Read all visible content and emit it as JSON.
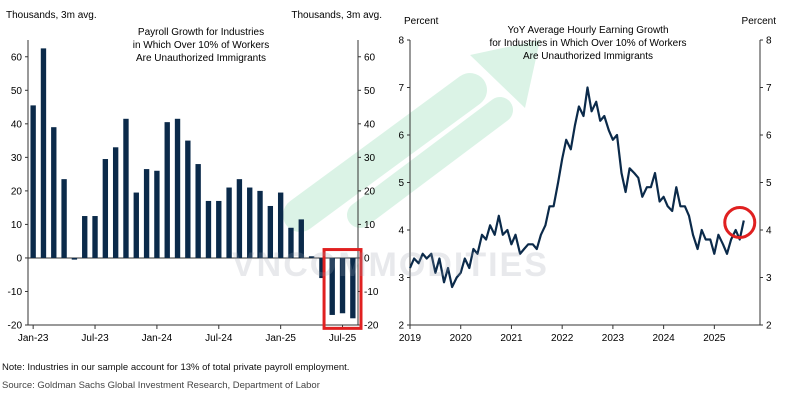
{
  "watermark": "VNCOMMODITIES",
  "note": "Note: Industries in our sample account for 13% of total private payroll employment.",
  "source": "Source: Goldman Sachs Global Investment Research, Department of Labor",
  "colors": {
    "bar": "#0b2a4a",
    "line": "#0b2a4a",
    "highlight": "#e02020",
    "watermark_arrow": "#7fd6a8"
  },
  "chart_data": [
    {
      "type": "bar",
      "title": "Payroll Growth for Industries in Which Over 10% of Workers Are Unauthorized Immigrants",
      "title_lines": [
        "Payroll Growth for Industries",
        "in Which Over 10% of Workers",
        "Are Unauthorized Immigrants"
      ],
      "left_unit_label": "Thousands, 3m avg.",
      "right_unit_label": "Thousands, 3m avg.",
      "ylim": [
        -20,
        65
      ],
      "y_ticks": [
        -20,
        -10,
        0,
        10,
        20,
        30,
        40,
        50,
        60
      ],
      "x_tick_labels": [
        "Jan-23",
        "Jul-23",
        "Jan-24",
        "Jul-24",
        "Jan-25",
        "Jul-25"
      ],
      "x_tick_index": [
        0,
        6,
        12,
        18,
        24,
        30
      ],
      "categories": [
        "Jan-23",
        "Feb-23",
        "Mar-23",
        "Apr-23",
        "May-23",
        "Jun-23",
        "Jul-23",
        "Aug-23",
        "Sep-23",
        "Oct-23",
        "Nov-23",
        "Dec-23",
        "Jan-24",
        "Feb-24",
        "Mar-24",
        "Apr-24",
        "May-24",
        "Jun-24",
        "Jul-24",
        "Aug-24",
        "Sep-24",
        "Oct-24",
        "Nov-24",
        "Dec-24",
        "Jan-25",
        "Feb-25",
        "Mar-25",
        "Apr-25",
        "May-25",
        "Jun-25",
        "Jul-25",
        "Aug-25"
      ],
      "values": [
        45.5,
        62.5,
        39,
        23.5,
        -0.5,
        12.5,
        12.5,
        29.5,
        33,
        41.5,
        19.5,
        26.5,
        26,
        40.5,
        41.5,
        35,
        28,
        17,
        17,
        21,
        23.5,
        21,
        20,
        15.5,
        19.5,
        9,
        11.5,
        0.5,
        -6,
        -17,
        -16.5,
        -18
      ],
      "highlight_range": [
        "Jun-25",
        "Aug-25"
      ]
    },
    {
      "type": "line",
      "title": "YoY Average Hourly Earning Growth for Industries in Which Over 10% of Workers Are Unauthorized Immigrants",
      "title_lines": [
        "YoY Average Hourly Earning Growth",
        "for Industries in Which Over 10% of Workers",
        "Are Unauthorized Immigrants"
      ],
      "left_unit_label": "Percent",
      "right_unit_label": "Percent",
      "ylim": [
        2,
        8
      ],
      "y_ticks": [
        2,
        3,
        4,
        5,
        6,
        7,
        8
      ],
      "x_tick_labels": [
        "2019",
        "2020",
        "2021",
        "2022",
        "2023",
        "2024",
        "2025"
      ],
      "xlim": [
        2019,
        2025.9
      ],
      "x": [
        2019.0,
        2019.08,
        2019.17,
        2019.25,
        2019.33,
        2019.42,
        2019.5,
        2019.58,
        2019.67,
        2019.75,
        2019.83,
        2019.92,
        2020.0,
        2020.08,
        2020.17,
        2020.25,
        2020.33,
        2020.42,
        2020.5,
        2020.58,
        2020.67,
        2020.75,
        2020.83,
        2020.92,
        2021.0,
        2021.08,
        2021.17,
        2021.25,
        2021.33,
        2021.42,
        2021.5,
        2021.58,
        2021.67,
        2021.75,
        2021.83,
        2021.92,
        2022.0,
        2022.08,
        2022.17,
        2022.25,
        2022.33,
        2022.42,
        2022.5,
        2022.58,
        2022.67,
        2022.75,
        2022.83,
        2022.92,
        2023.0,
        2023.08,
        2023.17,
        2023.25,
        2023.33,
        2023.42,
        2023.5,
        2023.58,
        2023.67,
        2023.75,
        2023.83,
        2023.92,
        2024.0,
        2024.08,
        2024.17,
        2024.25,
        2024.33,
        2024.42,
        2024.5,
        2024.58,
        2024.67,
        2024.75,
        2024.83,
        2024.92,
        2025.0,
        2025.08,
        2025.17,
        2025.25,
        2025.33,
        2025.42,
        2025.5,
        2025.58
      ],
      "y": [
        3.2,
        3.4,
        3.3,
        3.5,
        3.4,
        3.5,
        3.1,
        3.4,
        2.9,
        3.2,
        2.8,
        3.0,
        3.1,
        3.4,
        3.2,
        3.6,
        3.5,
        3.9,
        3.8,
        4.1,
        3.9,
        4.3,
        3.9,
        4.0,
        3.7,
        3.9,
        3.5,
        3.6,
        3.7,
        3.7,
        3.6,
        3.9,
        4.1,
        4.5,
        4.5,
        5.0,
        5.5,
        5.9,
        5.7,
        6.2,
        6.6,
        6.4,
        7.0,
        6.5,
        6.7,
        6.3,
        6.4,
        6.1,
        5.9,
        6.0,
        5.2,
        4.8,
        5.3,
        5.2,
        5.1,
        4.7,
        4.9,
        4.9,
        5.2,
        4.6,
        4.7,
        4.5,
        4.4,
        4.9,
        4.5,
        4.5,
        4.3,
        3.9,
        3.6,
        4.0,
        3.8,
        3.8,
        3.5,
        3.9,
        3.7,
        3.5,
        3.8,
        4.0,
        3.8,
        4.2
      ],
      "highlight_point_x": 2025.58
    }
  ]
}
